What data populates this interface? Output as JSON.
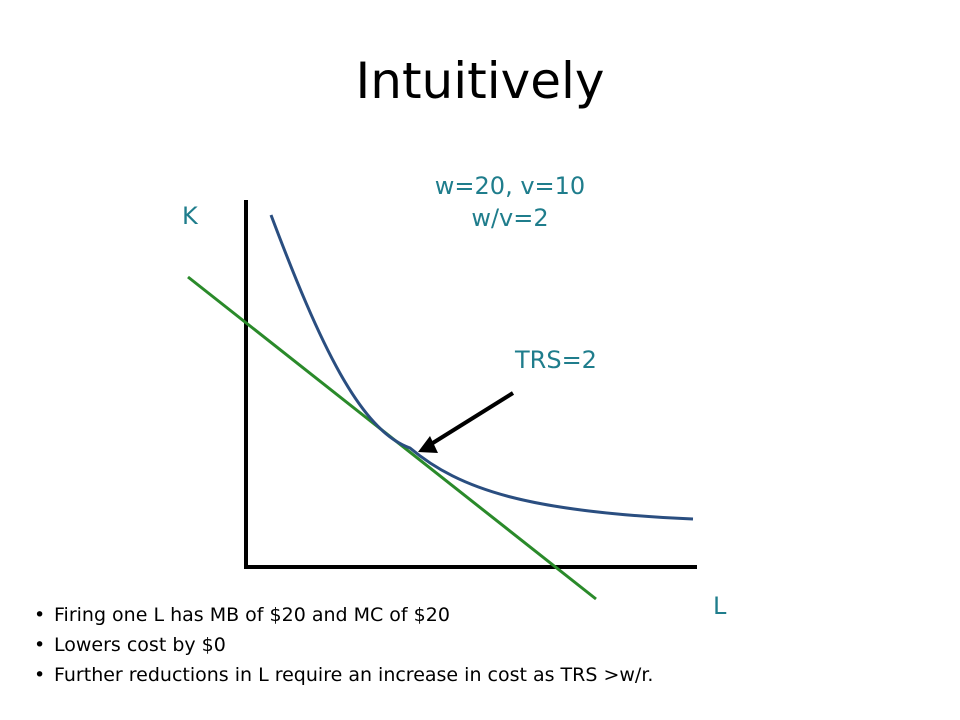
{
  "title": "Intuitively",
  "diagram": {
    "axis_y_label": "K",
    "axis_x_label": "L",
    "prices_line1": "w=20, v=10",
    "prices_line2": "w/v=2",
    "tangency_label": "TRS=2",
    "colors": {
      "isoquant": "#2a4e80",
      "isocost": "#2a8a2a",
      "axes": "#000000",
      "label": "#1f7d8c"
    }
  },
  "bullets": [
    "Firing one L has MB of $20 and MC of $20",
    "Lowers cost by $0",
    "Further reductions in L require an increase in cost as TRS >w/r."
  ]
}
